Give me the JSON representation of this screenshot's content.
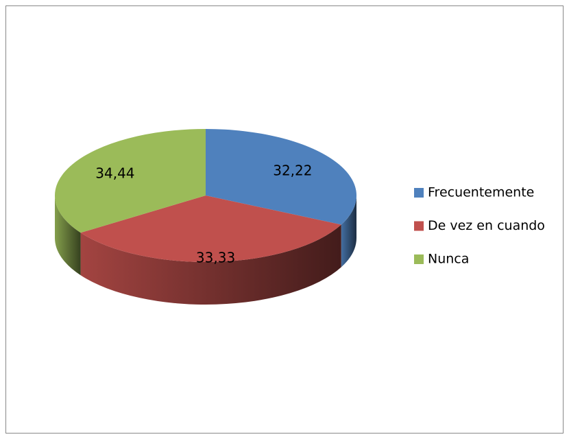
{
  "chart_data": {
    "type": "pie",
    "categories": [
      "Frecuentemente",
      "De vez en cuando",
      "Nunca"
    ],
    "values": [
      32.22,
      33.33,
      34.44
    ],
    "value_labels": [
      "32,22",
      "33,33",
      "34,44"
    ],
    "colors": [
      "#4f81bd",
      "#c0504d",
      "#9bbb59"
    ],
    "legend": "right"
  }
}
